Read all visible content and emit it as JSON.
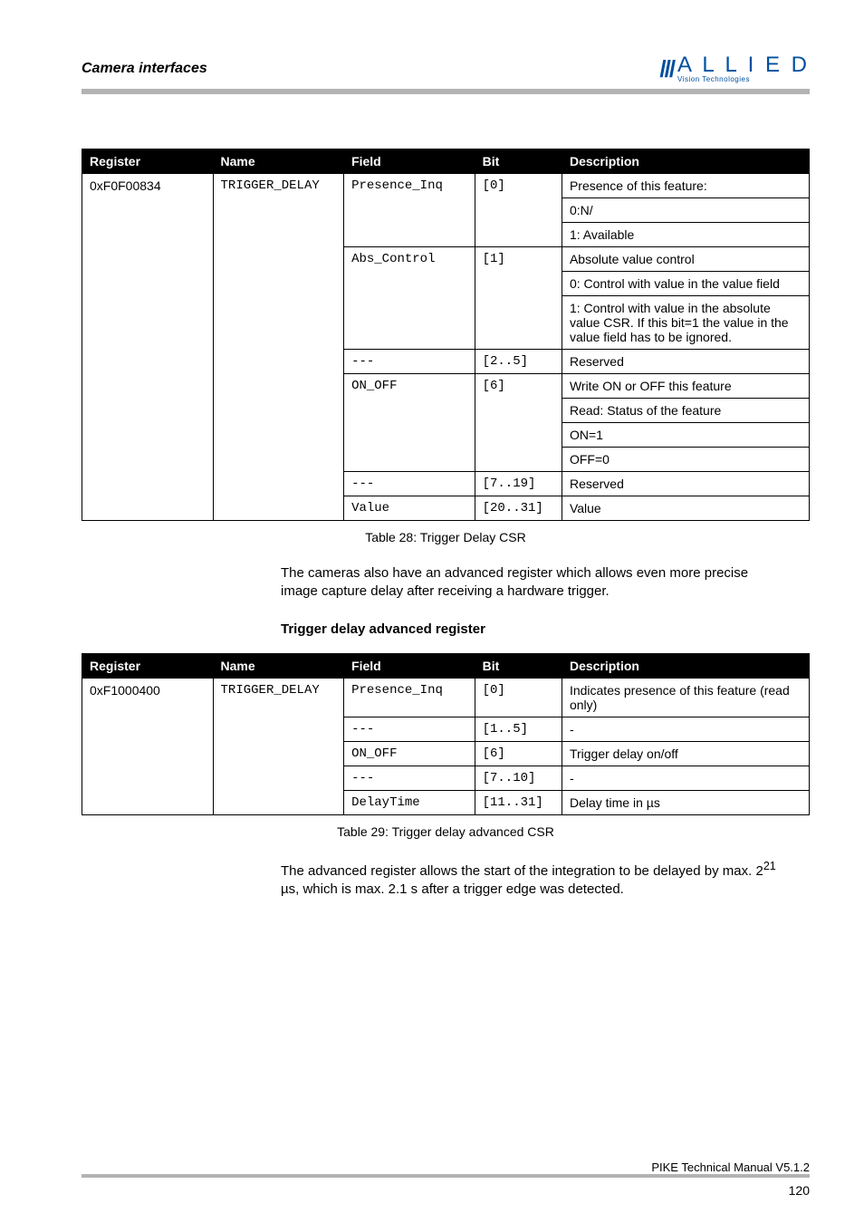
{
  "header": {
    "section": "Camera interfaces",
    "logo_main": "A L L I E D",
    "logo_sub": "Vision Technologies"
  },
  "table1": {
    "cols": [
      "Register",
      "Name",
      "Field",
      "Bit",
      "Description"
    ],
    "register": "0xF0F00834",
    "name": "TRIGGER_DELAY",
    "rows": [
      {
        "field": "Presence_Inq",
        "bit": "[0]",
        "desc": [
          "Presence of this feature:",
          "0:N/",
          "1: Available"
        ]
      },
      {
        "field": "Abs_Control",
        "bit": "[1]",
        "desc": [
          "Absolute value control",
          "0: Control with value in the value field",
          "1: Control with value in the absolute value CSR. If this bit=1 the value in the value field has to be ignored."
        ]
      },
      {
        "field": "---",
        "bit": "[2..5]",
        "desc": [
          "Reserved"
        ]
      },
      {
        "field": "ON_OFF",
        "bit": "[6]",
        "desc": [
          "Write ON or OFF this feature",
          "Read: Status of the feature",
          "ON=1",
          "OFF=0"
        ]
      },
      {
        "field": "---",
        "bit": "[7..19]",
        "desc": [
          "Reserved"
        ]
      },
      {
        "field": "Value",
        "bit": "[20..31]",
        "desc": [
          "Value"
        ]
      }
    ]
  },
  "caption1": "Table 28: Trigger Delay CSR",
  "para1": "The cameras also have an advanced register which allows even more precise image capture delay after receiving a hardware trigger.",
  "heading2": "Trigger delay advanced register",
  "table2": {
    "cols": [
      "Register",
      "Name",
      "Field",
      "Bit",
      "Description"
    ],
    "register": "0xF1000400",
    "name": "TRIGGER_DELAY",
    "rows": [
      {
        "field": "Presence_Inq",
        "bit": "[0]",
        "desc": "Indicates presence of this feature (read only)"
      },
      {
        "field": "---",
        "bit": "[1..5]",
        "desc": "-"
      },
      {
        "field": "ON_OFF",
        "bit": "[6]",
        "desc": "Trigger delay on/off"
      },
      {
        "field": "---",
        "bit": "[7..10]",
        "desc": "-"
      },
      {
        "field": "DelayTime",
        "bit": "[11..31]",
        "desc": "Delay time in µs"
      }
    ]
  },
  "caption2": "Table 29: Trigger delay advanced CSR",
  "para2_a": "The advanced register allows the start of the integration to be delayed by max. 2",
  "para2_exp": "21",
  "para2_b": " µs, which is max. 2.1 s after a trigger edge was detected.",
  "footer": {
    "doc": "PIKE Technical Manual V5.1.2",
    "page": "120"
  }
}
